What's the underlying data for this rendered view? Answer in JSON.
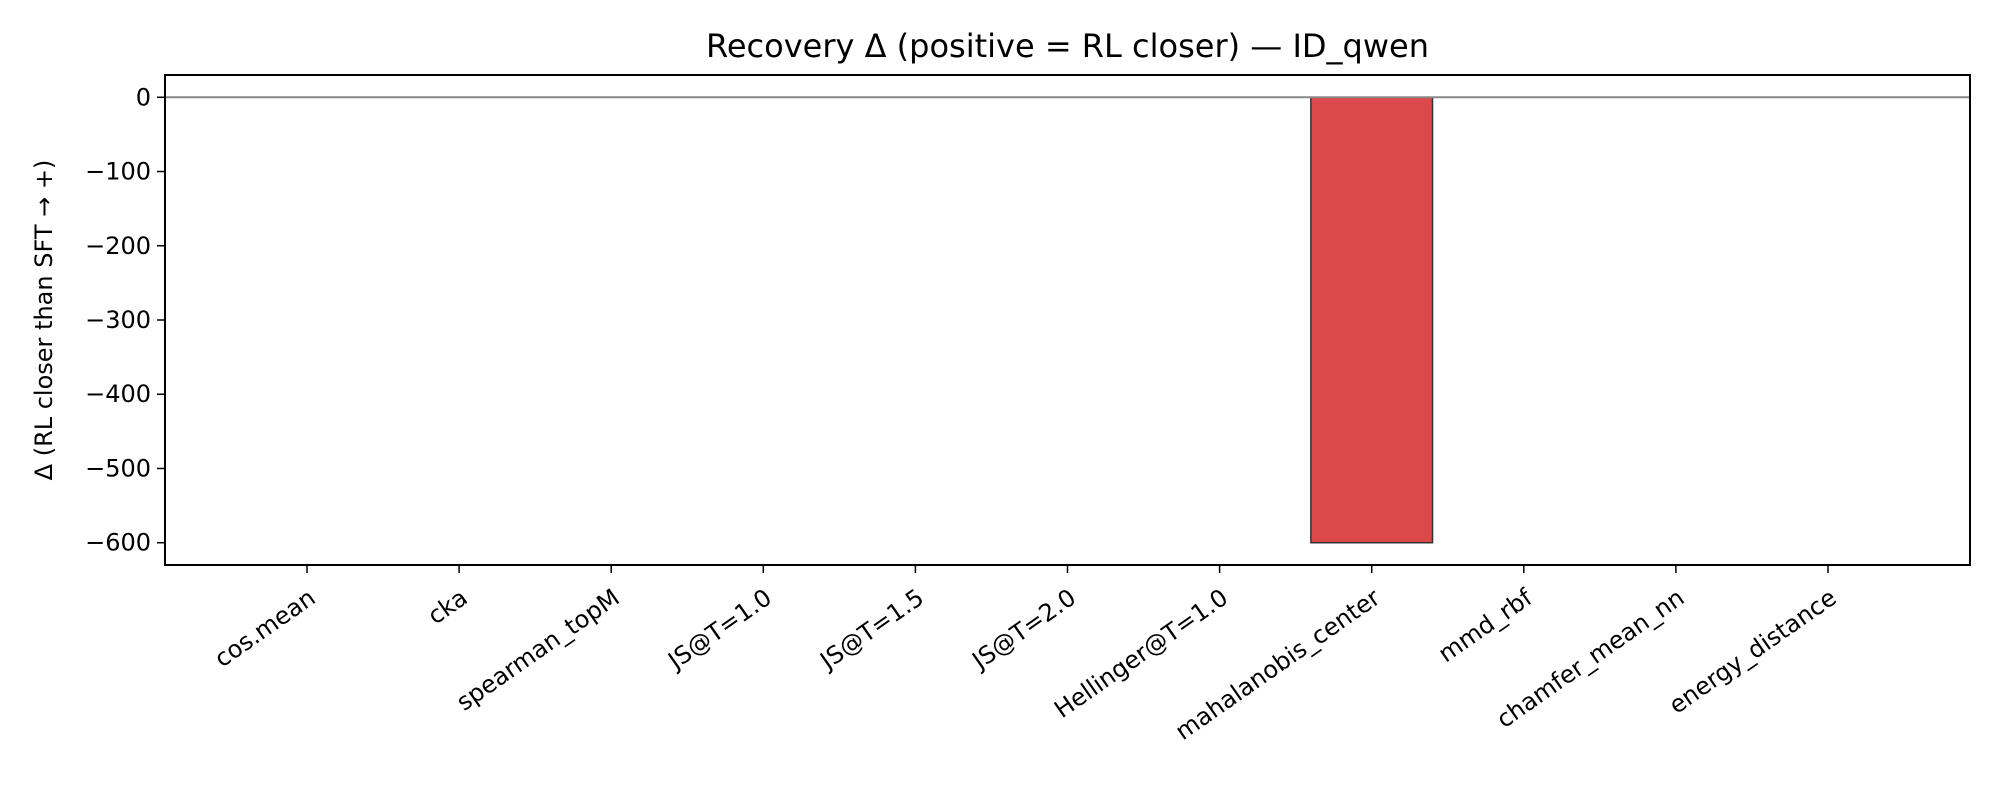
{
  "chart_data": {
    "type": "bar",
    "title": "Recovery Δ (positive = RL closer) — ID_qwen",
    "xlabel": "",
    "ylabel": "Δ (RL closer than SFT → +)",
    "categories": [
      "cos.mean",
      "cka",
      "spearman_topM",
      "JS@T=1.0",
      "JS@T=1.5",
      "JS@T=2.0",
      "Hellinger@T=1.0",
      "mahalanobis_center",
      "mmd_rbf",
      "chamfer_mean_nn",
      "energy_distance"
    ],
    "values": [
      0,
      0,
      0,
      0,
      0,
      0,
      0,
      -600,
      0,
      0,
      0
    ],
    "ylim": [
      -630,
      30
    ],
    "yticks": [
      0,
      -100,
      -200,
      -300,
      -400,
      -500,
      -600
    ],
    "ytick_labels": [
      "0",
      "−100",
      "−200",
      "−300",
      "−400",
      "−500",
      "−600"
    ],
    "grid": false,
    "zero_line": true,
    "colors": {
      "negative_bar": "#dc494a",
      "positive_bar": "#2ca02c",
      "bar_edge": "#333333",
      "zero_line": "#888888",
      "axis": "#000000"
    }
  }
}
